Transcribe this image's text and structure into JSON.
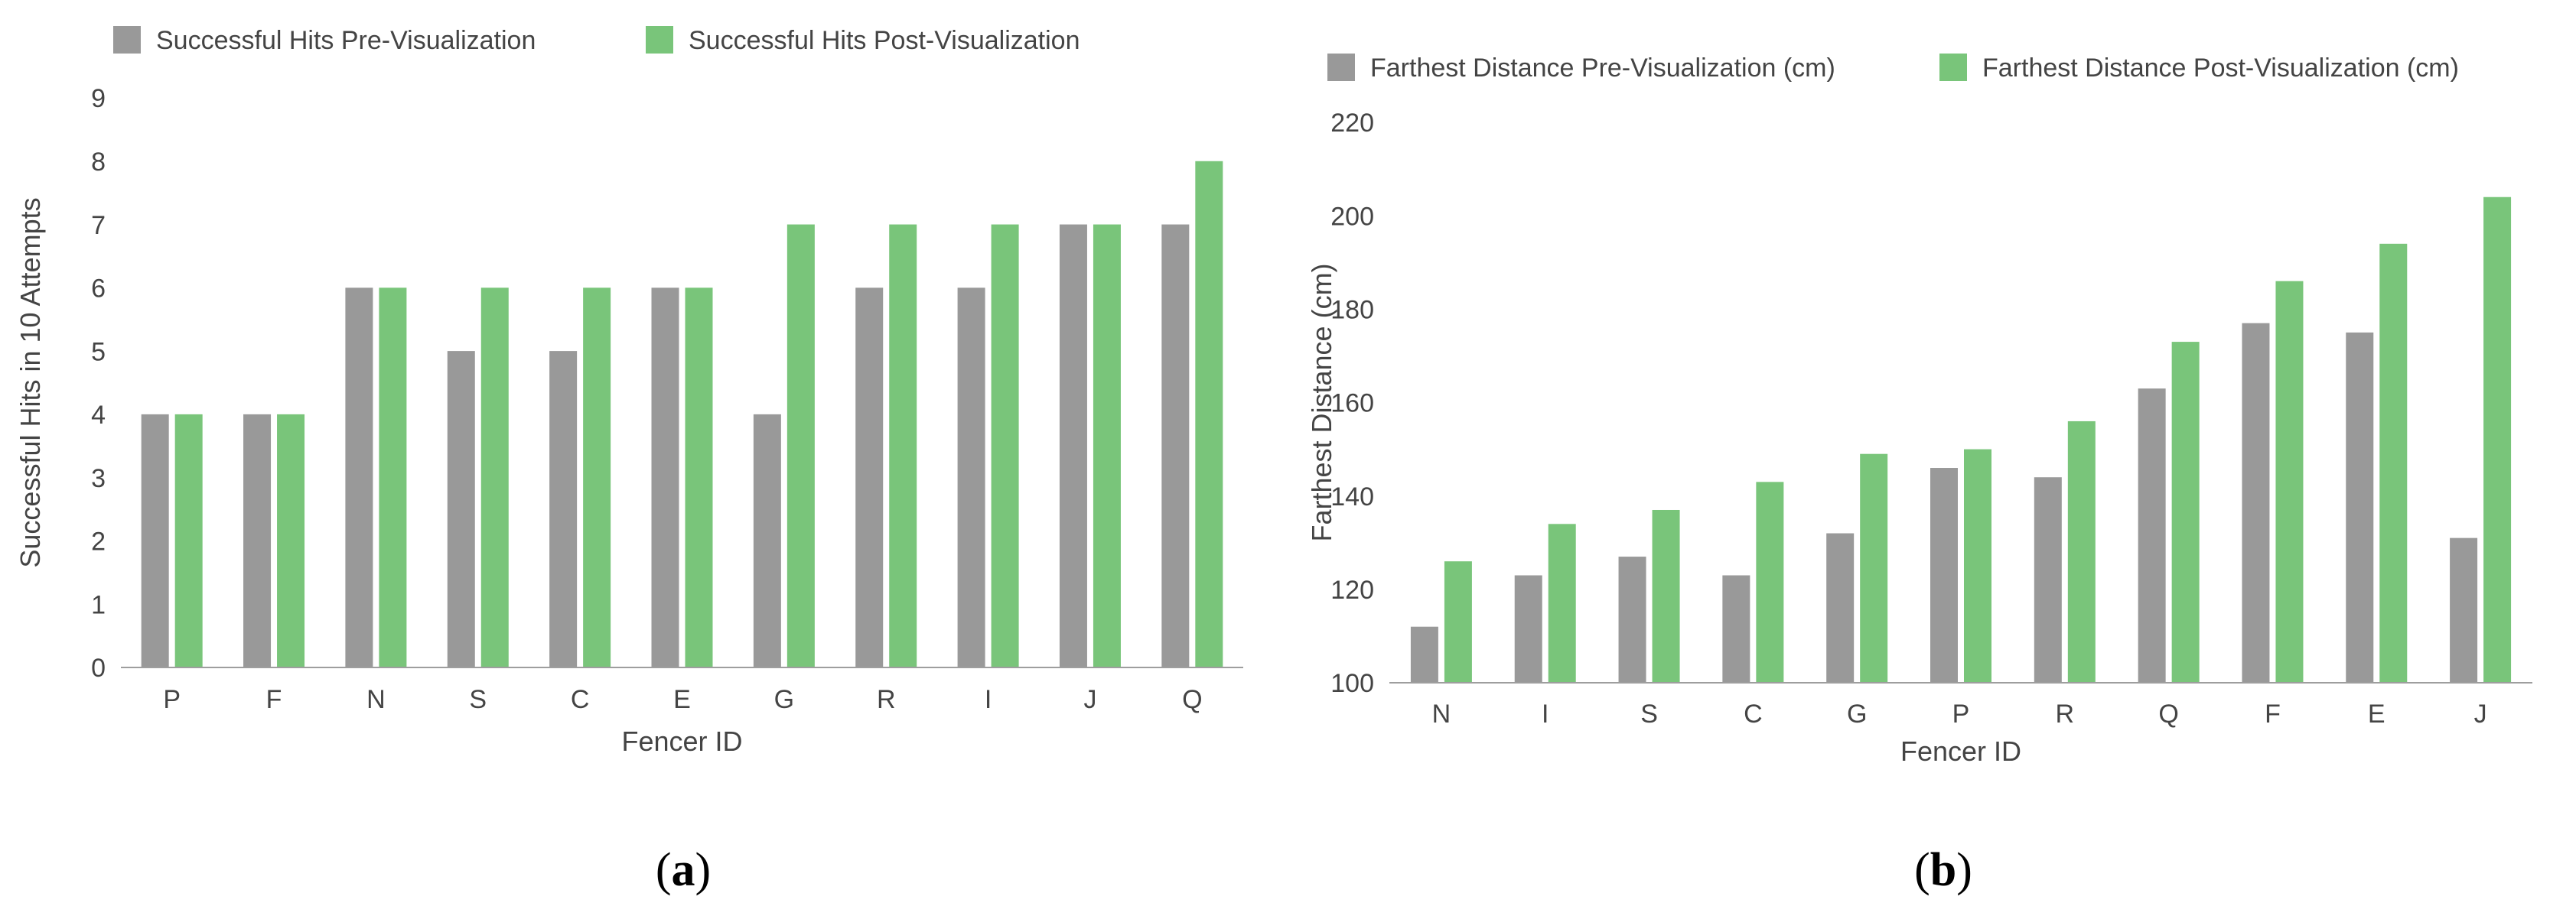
{
  "colors": {
    "pre": "#999999",
    "post": "#79c57a",
    "axis": "#9e9e9e",
    "text": "#444444"
  },
  "chart_data": [
    {
      "type": "bar",
      "panel_label": "a",
      "title": "",
      "xlabel": "Fencer ID",
      "ylabel": "Successful Hits in 10 Attempts",
      "ylim": [
        0,
        9
      ],
      "yticks": [
        "0",
        "1",
        "2",
        "3",
        "4",
        "5",
        "6",
        "7",
        "8",
        "9"
      ],
      "grid": false,
      "legend_position": "top-left",
      "categories": [
        "P",
        "F",
        "N",
        "S",
        "C",
        "E",
        "G",
        "R",
        "I",
        "J",
        "Q"
      ],
      "series": [
        {
          "name": "Successful Hits Pre-Visualization",
          "color": "#999999",
          "values": [
            4,
            4,
            6,
            5,
            5,
            6,
            4,
            6,
            6,
            7,
            7
          ]
        },
        {
          "name": "Successful Hits Post-Visualization",
          "color": "#79c57a",
          "values": [
            4,
            4,
            6,
            6,
            6,
            6,
            7,
            7,
            7,
            7,
            8
          ]
        }
      ]
    },
    {
      "type": "bar",
      "panel_label": "b",
      "title": "",
      "xlabel": "Fencer ID",
      "ylabel": "Farthest Distance (cm)",
      "ylim": [
        100,
        220
      ],
      "yticks": [
        "100",
        "120",
        "140",
        "160",
        "180",
        "200",
        "220"
      ],
      "grid": false,
      "legend_position": "top-left",
      "categories": [
        "N",
        "I",
        "S",
        "C",
        "G",
        "P",
        "R",
        "Q",
        "F",
        "E",
        "J"
      ],
      "series": [
        {
          "name": "Farthest Distance Pre-Visualization (cm)",
          "color": "#999999",
          "values": [
            112,
            123,
            127,
            123,
            132,
            146,
            144,
            163,
            177,
            175,
            131
          ]
        },
        {
          "name": "Farthest Distance Post-Visualization (cm)",
          "color": "#79c57a",
          "values": [
            126,
            134,
            137,
            143,
            149,
            150,
            156,
            173,
            186,
            194,
            204
          ]
        }
      ]
    }
  ]
}
